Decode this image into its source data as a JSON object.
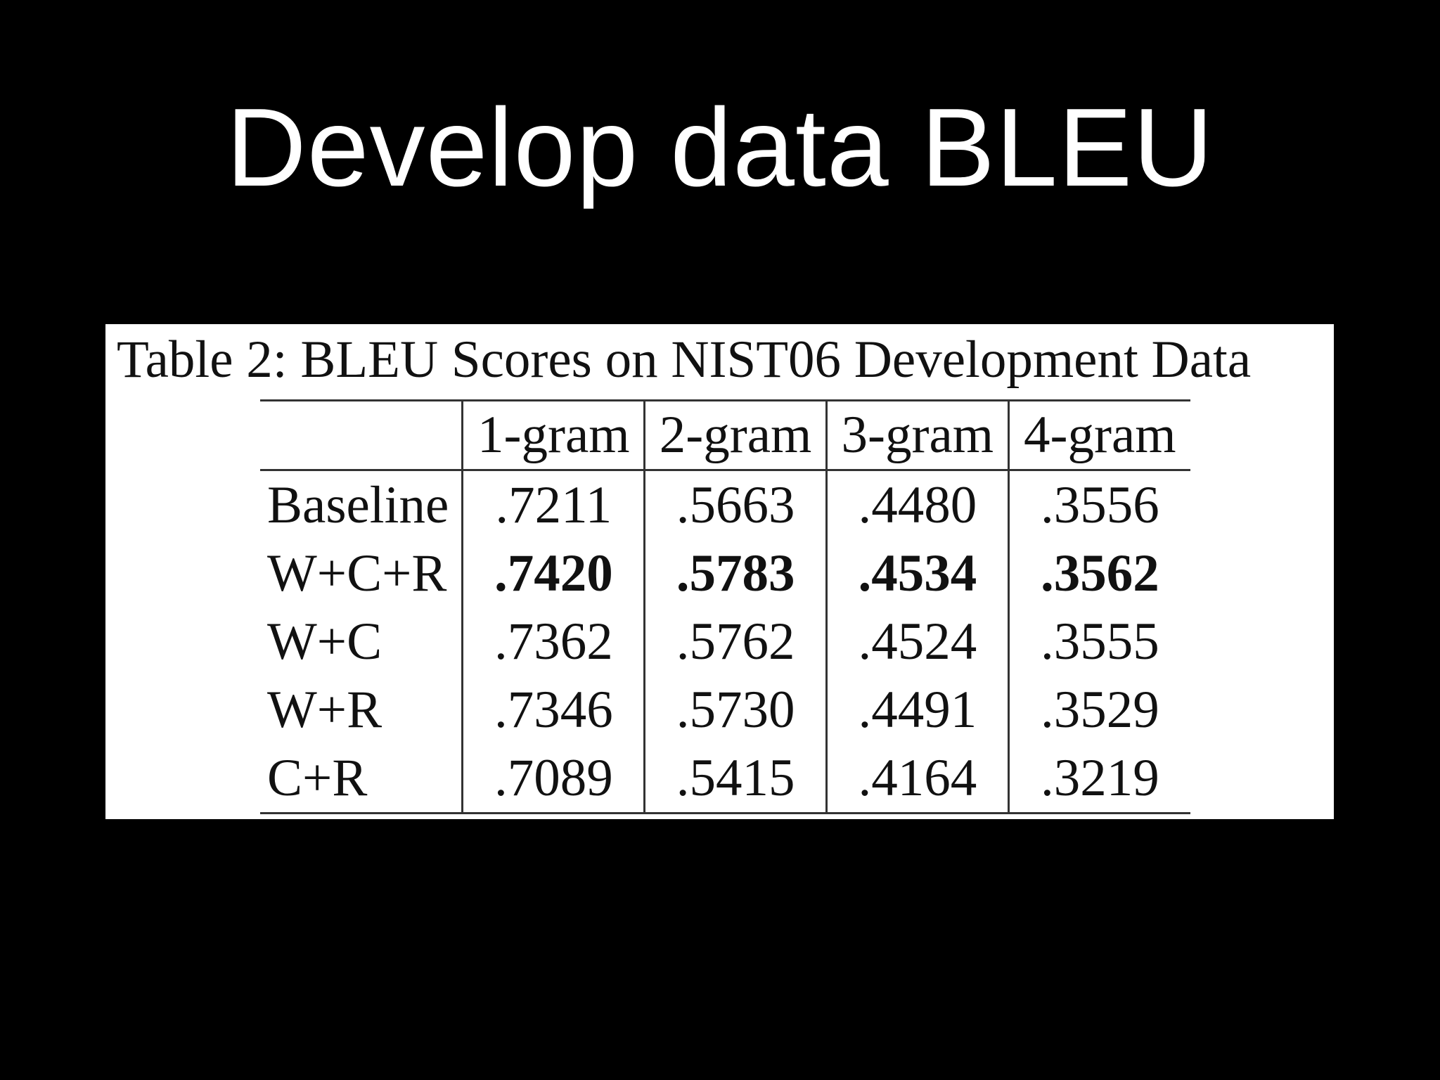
{
  "slide": {
    "title": "Develop data BLEU"
  },
  "table": {
    "caption": "Table 2: BLEU Scores on NIST06 Development Data",
    "columns": [
      "",
      "1-gram",
      "2-gram",
      "3-gram",
      "4-gram"
    ],
    "rows": [
      {
        "label": "Baseline",
        "values": [
          ".7211",
          ".5663",
          ".4480",
          ".3556"
        ],
        "bold": false
      },
      {
        "label": "W+C+R",
        "values": [
          ".7420",
          ".5783",
          ".4534",
          ".3562"
        ],
        "bold": true
      },
      {
        "label": "W+C",
        "values": [
          ".7362",
          ".5762",
          ".4524",
          ".3555"
        ],
        "bold": false
      },
      {
        "label": "W+R",
        "values": [
          ".7346",
          ".5730",
          ".4491",
          ".3529"
        ],
        "bold": false
      },
      {
        "label": "C+R",
        "values": [
          ".7089",
          ".5415",
          ".4164",
          ".3219"
        ],
        "bold": false
      }
    ]
  }
}
